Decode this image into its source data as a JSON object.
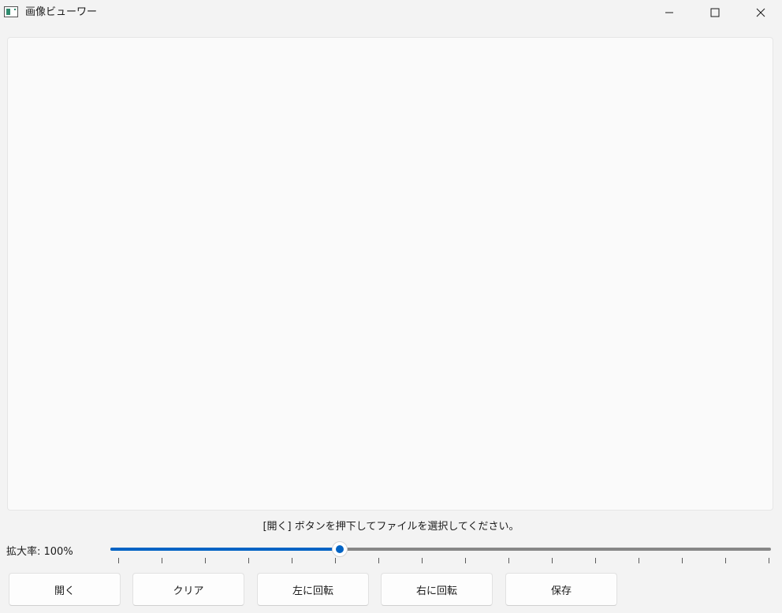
{
  "window": {
    "title": "画像ビューワー",
    "icon": "picture-app-icon",
    "controls": [
      "minimize-icon",
      "maximize-icon",
      "close-icon"
    ]
  },
  "viewer": {
    "image": ""
  },
  "status": {
    "message": "[開く] ボタンを押下してファイルを選択してください。"
  },
  "zoom": {
    "label": "拡大率: 100%",
    "slider_fraction": 0.34,
    "tick_count": 16,
    "accent_color": "#0063c4"
  },
  "buttons": {
    "open": "開く",
    "clear": "クリア",
    "rotate_left": "左に回転",
    "rotate_right": "右に回転",
    "save": "保存"
  }
}
